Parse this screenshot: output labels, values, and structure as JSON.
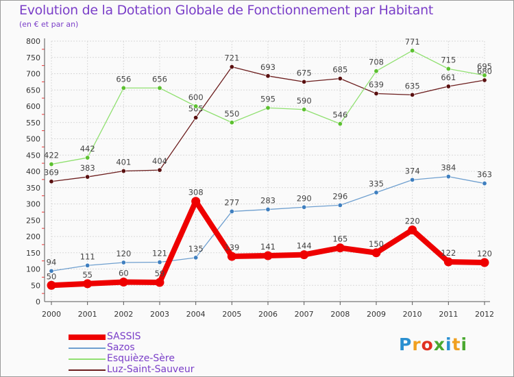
{
  "header": {
    "title": "Evolution de la Dotation Globale de Fonctionnement par Habitant",
    "subtitle": "(en € et par an)"
  },
  "logo": {
    "text": "Proxiti",
    "letters": [
      "P",
      "r",
      "o",
      "x",
      "i",
      "t",
      "i"
    ],
    "colors": [
      "#2a8fd0",
      "#f0a020",
      "#e03020",
      "#4aa830",
      "#2a8fd0",
      "#f0a020",
      "#4aa830"
    ]
  },
  "chart_data": {
    "type": "line",
    "title": "Evolution de la Dotation Globale de Fonctionnement par Habitant",
    "subtitle": "(en € et par an)",
    "xlabel": "",
    "ylabel": "",
    "ylim": [
      0,
      800
    ],
    "yticks": [
      0,
      50,
      100,
      150,
      200,
      250,
      300,
      350,
      400,
      450,
      500,
      550,
      600,
      650,
      700,
      750,
      800
    ],
    "x": [
      "2000",
      "2001",
      "2002",
      "2003",
      "2004",
      "2005",
      "2006",
      "2007",
      "2008",
      "2009",
      "2010",
      "2011",
      "2012"
    ],
    "grid": true,
    "legend_position": "bottom-left",
    "series": [
      {
        "name": "Luz-Saint-Sauveur",
        "color": "#6b1c1c",
        "marker": "#5a1010",
        "values": [
          369,
          383,
          401,
          404,
          565,
          721,
          693,
          675,
          685,
          639,
          635,
          661,
          680
        ],
        "labels": [
          "369",
          "383",
          "401",
          "404",
          "565",
          "721",
          "693",
          "675",
          "685",
          "639",
          "635",
          "661",
          "680"
        ]
      },
      {
        "name": "Esquièze-Sère",
        "color": "#90e070",
        "marker": "#5cc030",
        "values": [
          422,
          442,
          656,
          656,
          600,
          550,
          595,
          590,
          546,
          708,
          771,
          715,
          695
        ],
        "labels": [
          "422",
          "442",
          "656",
          "656",
          "600",
          "550",
          "595",
          "590",
          "546",
          "708",
          "771",
          "715",
          "695"
        ]
      },
      {
        "name": "Sazos",
        "color": "#6e9fcf",
        "marker": "#3f7fbf",
        "values": [
          94,
          111,
          120,
          121,
          135,
          277,
          283,
          290,
          296,
          335,
          374,
          384,
          363
        ],
        "labels": [
          "94",
          "111",
          "120",
          "121",
          "135",
          "277",
          "283",
          "290",
          "296",
          "335",
          "374",
          "384",
          "363"
        ]
      },
      {
        "name": "SASSIS",
        "color": "#ee0000",
        "marker": "#ee0000",
        "values": [
          50,
          55,
          60,
          59,
          308,
          139,
          141,
          144,
          165,
          150,
          220,
          122,
          120
        ],
        "labels": [
          "50",
          "55",
          "60",
          "59",
          "308",
          "139",
          "141",
          "144",
          "165",
          "150",
          "220",
          "122",
          "120"
        ]
      }
    ],
    "legend": [
      "SASSIS",
      "Sazos",
      "Esquièze-Sère",
      "Luz-Saint-Sauveur"
    ]
  }
}
